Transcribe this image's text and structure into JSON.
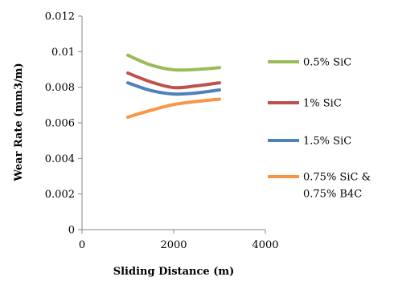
{
  "chart_data": {
    "type": "line",
    "xlabel": "Sliding Distance (m)",
    "ylabel": "Wear Rate (mm3/m)",
    "xlim": [
      0,
      4000
    ],
    "ylim": [
      0,
      0.012
    ],
    "xticks": [
      "0",
      "2000",
      "4000"
    ],
    "yticks": [
      "0",
      "0.002",
      "0.004",
      "0.006",
      "0.008",
      "0.01",
      "0.012"
    ],
    "grid": false,
    "legend_position": "right",
    "series": [
      {
        "name": "0.5% SiC",
        "color": "#9BBB59",
        "x": [
          1000,
          1500,
          2000,
          2500,
          3000
        ],
        "y": [
          0.0098,
          0.00925,
          0.00898,
          0.009,
          0.0091
        ]
      },
      {
        "name": "1% SiC",
        "color": "#C0504D",
        "x": [
          1000,
          1500,
          2000,
          2500,
          3000
        ],
        "y": [
          0.0088,
          0.0083,
          0.00798,
          0.00808,
          0.00825
        ]
      },
      {
        "name": "1.5% SiC",
        "color": "#4F81BD",
        "x": [
          1000,
          1500,
          2000,
          2500,
          3000
        ],
        "y": [
          0.00825,
          0.00782,
          0.00762,
          0.00768,
          0.00785
        ]
      },
      {
        "name": "0.75% SiC & 0.75% B4C",
        "name_lines": [
          "0.75% SiC &",
          "0.75% B4C"
        ],
        "color": "#F79646",
        "x": [
          1000,
          1500,
          2000,
          2500,
          3000
        ],
        "y": [
          0.00632,
          0.0067,
          0.00703,
          0.0072,
          0.00733
        ]
      }
    ]
  }
}
